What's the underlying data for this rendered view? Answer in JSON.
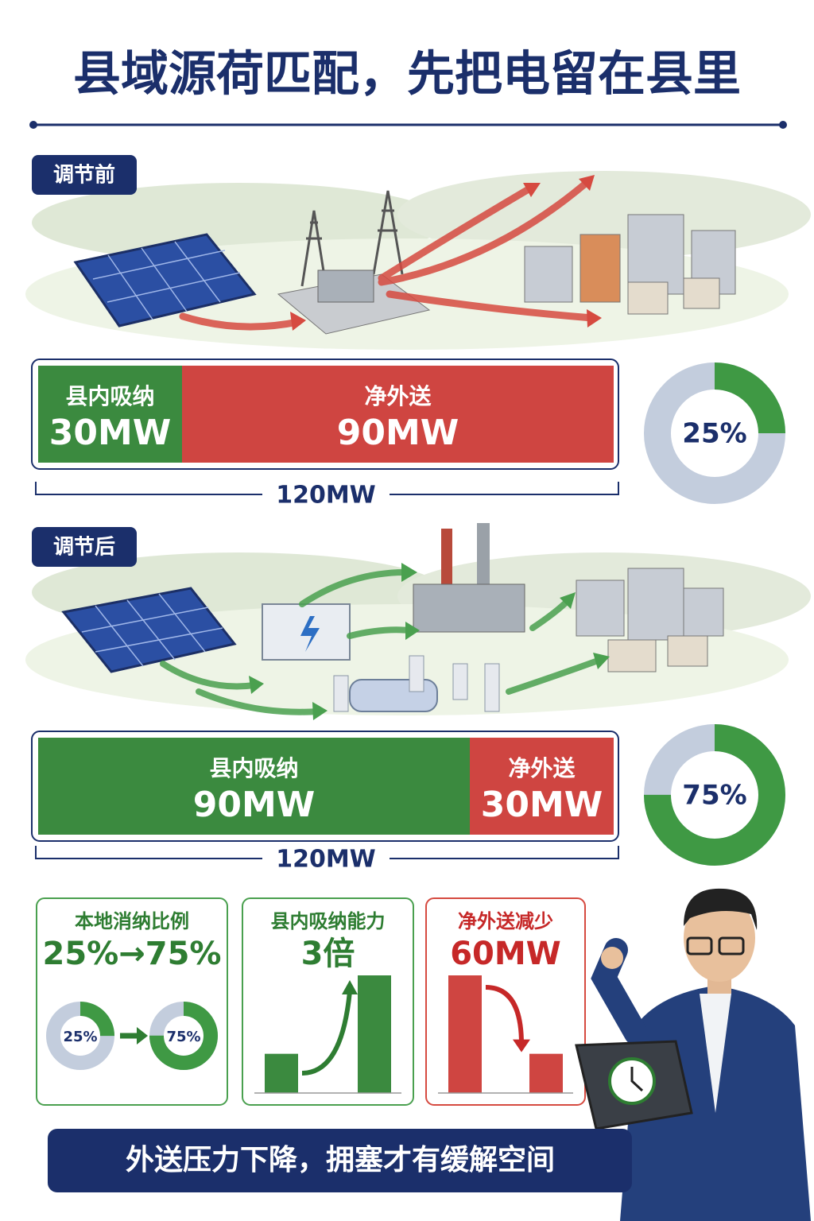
{
  "title": "县域源荷匹配，先把电留在县里",
  "sections": [
    {
      "tag": "调节前",
      "segments": [
        {
          "name": "县内吸纳",
          "value": 30,
          "value_label": "30MW",
          "color": "#3b8a3f"
        },
        {
          "name": "净外送",
          "value": 90,
          "value_label": "90MW",
          "color": "#cf4541"
        }
      ],
      "total": 120,
      "total_label": "120MW",
      "share": 25,
      "share_label": "25%"
    },
    {
      "tag": "调节后",
      "segments": [
        {
          "name": "县内吸纳",
          "value": 90,
          "value_label": "90MW",
          "color": "#3b8a3f"
        },
        {
          "name": "净外送",
          "value": 30,
          "value_label": "30MW",
          "color": "#cf4541"
        }
      ],
      "total": 120,
      "total_label": "120MW",
      "share": 75,
      "share_label": "75%"
    }
  ],
  "cards": [
    {
      "title": "本地消纳比例",
      "headline": "25%→75%",
      "color": "#2e7d32",
      "from": 25,
      "from_label": "25%",
      "to": 75,
      "to_label": "75%"
    },
    {
      "title": "县内吸纳能力",
      "headline": "3倍",
      "color": "#2e7d32",
      "bars": [
        30,
        90
      ]
    },
    {
      "title": "净外送减少",
      "headline": "60MW",
      "color": "#c62828",
      "bars": [
        90,
        30
      ]
    }
  ],
  "footer": "外送压力下降，拥塞才有缓解空间"
}
